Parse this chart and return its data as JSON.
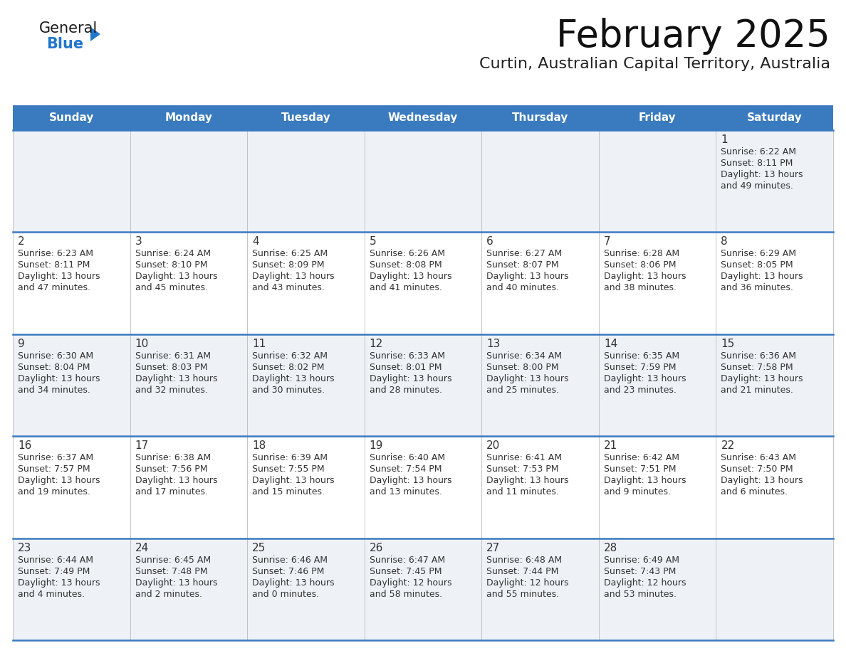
{
  "title": "February 2025",
  "subtitle": "Curtin, Australian Capital Territory, Australia",
  "days_of_week": [
    "Sunday",
    "Monday",
    "Tuesday",
    "Wednesday",
    "Thursday",
    "Friday",
    "Saturday"
  ],
  "header_bg": "#3a7bbf",
  "header_text": "#ffffff",
  "row_bg_odd": "#eef2f7",
  "row_bg_even": "#ffffff",
  "border_color": "#3a7bbf",
  "text_color": "#333333",
  "day_num_color": "#333333",
  "general_text_color": "#222222",
  "general_blue_color": "#2277cc",
  "triangle_color": "#2277cc",
  "weeks": [
    {
      "bg": "#eef2f7",
      "days": [
        {
          "date": null
        },
        {
          "date": null
        },
        {
          "date": null
        },
        {
          "date": null
        },
        {
          "date": null
        },
        {
          "date": null
        },
        {
          "date": 1,
          "sunrise": "6:22 AM",
          "sunset": "8:11 PM",
          "daylight": "13 hours",
          "daylight2": "and 49 minutes."
        }
      ]
    },
    {
      "bg": "#ffffff",
      "days": [
        {
          "date": 2,
          "sunrise": "6:23 AM",
          "sunset": "8:11 PM",
          "daylight": "13 hours",
          "daylight2": "and 47 minutes."
        },
        {
          "date": 3,
          "sunrise": "6:24 AM",
          "sunset": "8:10 PM",
          "daylight": "13 hours",
          "daylight2": "and 45 minutes."
        },
        {
          "date": 4,
          "sunrise": "6:25 AM",
          "sunset": "8:09 PM",
          "daylight": "13 hours",
          "daylight2": "and 43 minutes."
        },
        {
          "date": 5,
          "sunrise": "6:26 AM",
          "sunset": "8:08 PM",
          "daylight": "13 hours",
          "daylight2": "and 41 minutes."
        },
        {
          "date": 6,
          "sunrise": "6:27 AM",
          "sunset": "8:07 PM",
          "daylight": "13 hours",
          "daylight2": "and 40 minutes."
        },
        {
          "date": 7,
          "sunrise": "6:28 AM",
          "sunset": "8:06 PM",
          "daylight": "13 hours",
          "daylight2": "and 38 minutes."
        },
        {
          "date": 8,
          "sunrise": "6:29 AM",
          "sunset": "8:05 PM",
          "daylight": "13 hours",
          "daylight2": "and 36 minutes."
        }
      ]
    },
    {
      "bg": "#eef2f7",
      "days": [
        {
          "date": 9,
          "sunrise": "6:30 AM",
          "sunset": "8:04 PM",
          "daylight": "13 hours",
          "daylight2": "and 34 minutes."
        },
        {
          "date": 10,
          "sunrise": "6:31 AM",
          "sunset": "8:03 PM",
          "daylight": "13 hours",
          "daylight2": "and 32 minutes."
        },
        {
          "date": 11,
          "sunrise": "6:32 AM",
          "sunset": "8:02 PM",
          "daylight": "13 hours",
          "daylight2": "and 30 minutes."
        },
        {
          "date": 12,
          "sunrise": "6:33 AM",
          "sunset": "8:01 PM",
          "daylight": "13 hours",
          "daylight2": "and 28 minutes."
        },
        {
          "date": 13,
          "sunrise": "6:34 AM",
          "sunset": "8:00 PM",
          "daylight": "13 hours",
          "daylight2": "and 25 minutes."
        },
        {
          "date": 14,
          "sunrise": "6:35 AM",
          "sunset": "7:59 PM",
          "daylight": "13 hours",
          "daylight2": "and 23 minutes."
        },
        {
          "date": 15,
          "sunrise": "6:36 AM",
          "sunset": "7:58 PM",
          "daylight": "13 hours",
          "daylight2": "and 21 minutes."
        }
      ]
    },
    {
      "bg": "#ffffff",
      "days": [
        {
          "date": 16,
          "sunrise": "6:37 AM",
          "sunset": "7:57 PM",
          "daylight": "13 hours",
          "daylight2": "and 19 minutes."
        },
        {
          "date": 17,
          "sunrise": "6:38 AM",
          "sunset": "7:56 PM",
          "daylight": "13 hours",
          "daylight2": "and 17 minutes."
        },
        {
          "date": 18,
          "sunrise": "6:39 AM",
          "sunset": "7:55 PM",
          "daylight": "13 hours",
          "daylight2": "and 15 minutes."
        },
        {
          "date": 19,
          "sunrise": "6:40 AM",
          "sunset": "7:54 PM",
          "daylight": "13 hours",
          "daylight2": "and 13 minutes."
        },
        {
          "date": 20,
          "sunrise": "6:41 AM",
          "sunset": "7:53 PM",
          "daylight": "13 hours",
          "daylight2": "and 11 minutes."
        },
        {
          "date": 21,
          "sunrise": "6:42 AM",
          "sunset": "7:51 PM",
          "daylight": "13 hours",
          "daylight2": "and 9 minutes."
        },
        {
          "date": 22,
          "sunrise": "6:43 AM",
          "sunset": "7:50 PM",
          "daylight": "13 hours",
          "daylight2": "and 6 minutes."
        }
      ]
    },
    {
      "bg": "#eef2f7",
      "days": [
        {
          "date": 23,
          "sunrise": "6:44 AM",
          "sunset": "7:49 PM",
          "daylight": "13 hours",
          "daylight2": "and 4 minutes."
        },
        {
          "date": 24,
          "sunrise": "6:45 AM",
          "sunset": "7:48 PM",
          "daylight": "13 hours",
          "daylight2": "and 2 minutes."
        },
        {
          "date": 25,
          "sunrise": "6:46 AM",
          "sunset": "7:46 PM",
          "daylight": "13 hours",
          "daylight2": "and 0 minutes."
        },
        {
          "date": 26,
          "sunrise": "6:47 AM",
          "sunset": "7:45 PM",
          "daylight": "12 hours",
          "daylight2": "and 58 minutes."
        },
        {
          "date": 27,
          "sunrise": "6:48 AM",
          "sunset": "7:44 PM",
          "daylight": "12 hours",
          "daylight2": "and 55 minutes."
        },
        {
          "date": 28,
          "sunrise": "6:49 AM",
          "sunset": "7:43 PM",
          "daylight": "12 hours",
          "daylight2": "and 53 minutes."
        },
        {
          "date": null
        }
      ]
    }
  ]
}
